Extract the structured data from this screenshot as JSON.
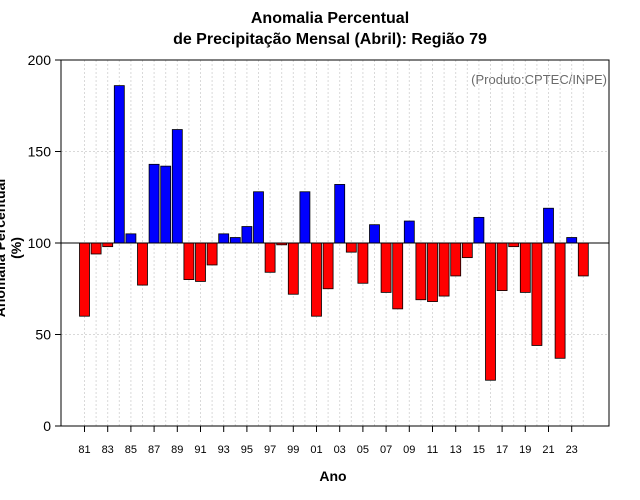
{
  "chart_data": {
    "type": "bar",
    "title": [
      "Anomalia Percentual",
      "de Precipitação Mensal (Abril): Região 79"
    ],
    "xlabel": "Ano",
    "ylabel": "Anomalia Percentual (%)",
    "credit": "(Produto:CPTEC/INPE)",
    "baseline": 100,
    "ylim": [
      0,
      200
    ],
    "yticks": [
      0,
      50,
      100,
      150,
      200
    ],
    "grid": true,
    "colors": {
      "above": "#0000ff",
      "below": "#ff0000",
      "outline": "#000000",
      "grid": "#d9d9d9"
    },
    "categories": [
      "81",
      "82",
      "83",
      "84",
      "85",
      "86",
      "87",
      "88",
      "89",
      "90",
      "91",
      "92",
      "93",
      "94",
      "95",
      "96",
      "97",
      "98",
      "99",
      "00",
      "01",
      "02",
      "03",
      "04",
      "05",
      "06",
      "07",
      "08",
      "09",
      "10",
      "11",
      "12",
      "13",
      "14",
      "15",
      "16",
      "17",
      "18",
      "19",
      "20",
      "21",
      "22",
      "23",
      "24"
    ],
    "xtick_labels": [
      "81",
      "83",
      "85",
      "87",
      "89",
      "91",
      "93",
      "95",
      "97",
      "99",
      "01",
      "03",
      "05",
      "07",
      "09",
      "11",
      "13",
      "15",
      "17",
      "19",
      "21",
      "23"
    ],
    "values": [
      60,
      94,
      98,
      186,
      105,
      77,
      143,
      142,
      162,
      80,
      79,
      88,
      105,
      103,
      109,
      128,
      84,
      99,
      72,
      128,
      60,
      75,
      132,
      95,
      78,
      110,
      73,
      64,
      112,
      69,
      68,
      71,
      82,
      92,
      114,
      25,
      74,
      98,
      73,
      44,
      119,
      37,
      103,
      82
    ]
  }
}
